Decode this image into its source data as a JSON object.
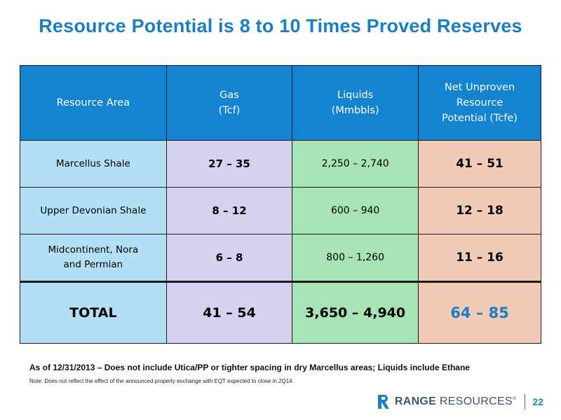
{
  "title": "Resource Potential is 8 to 10 Times Proved Reserves",
  "table": {
    "headers": [
      [
        "Resource Area"
      ],
      [
        "Gas",
        "(Tcf)"
      ],
      [
        "Liquids",
        "(Mmbbls)"
      ],
      [
        "Net Unproven",
        "Resource",
        "Potential (Tcfe)"
      ]
    ],
    "rows": [
      {
        "area": [
          "Marcellus Shale"
        ],
        "gas": "27 – 35",
        "liquids": "2,250 – 2,740",
        "net": "41 – 51"
      },
      {
        "area": [
          "Upper Devonian Shale"
        ],
        "gas": "8 – 12",
        "liquids": "600 –  940",
        "net": "12 – 18"
      },
      {
        "area": [
          "Midcontinent, Nora",
          "and Permian"
        ],
        "gas": "6 – 8",
        "liquids": "800  – 1,260",
        "net": "11 – 16"
      }
    ],
    "total": {
      "area": "TOTAL",
      "gas": "41 – 54",
      "liquids": "3,650 – 4,940",
      "net": "64 – 85"
    }
  },
  "footnote_main": "As of 12/31/2013 – Does not include Utica/PP or tighter spacing in dry Marcellus areas; Liquids include Ethane",
  "footnote_note": "Note: Does not reflect the effect of the announced property exchange with EQT expected to close in 2Q14.",
  "footer": {
    "logo_bold": "RANGE",
    "logo_light": "RESOURCES",
    "logo_mark": "®",
    "page_number": "22"
  },
  "colors": {
    "accent": "#1a7ec4",
    "header_bg": "#1483d0",
    "area_bg": "#b3dff5",
    "gas_bg": "#d5d2f0",
    "liquids_bg": "#a6e3b5",
    "net_bg": "#f2cbb8"
  },
  "icons": {
    "logo": "range-resources-logo-icon"
  }
}
